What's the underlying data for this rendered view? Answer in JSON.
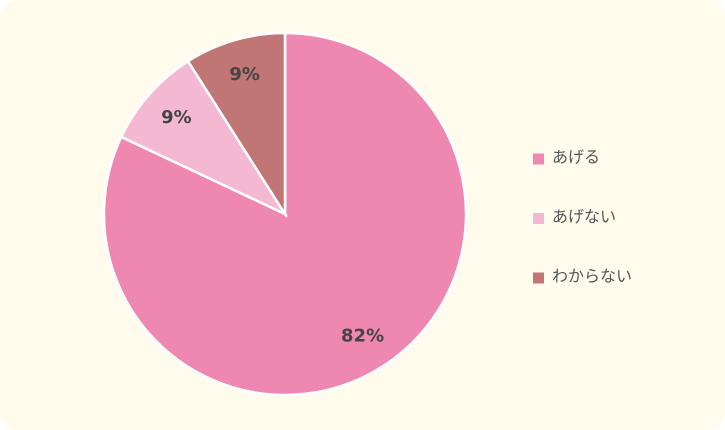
{
  "chart_data": {
    "type": "pie",
    "categories": [
      "あげる",
      "あげない",
      "わからない"
    ],
    "values": [
      82,
      9,
      9
    ],
    "value_labels": [
      "82%",
      "9%",
      "9%"
    ],
    "colors": [
      "#ee88b0",
      "#f5b8d3",
      "#c07674"
    ],
    "legend": "right"
  }
}
